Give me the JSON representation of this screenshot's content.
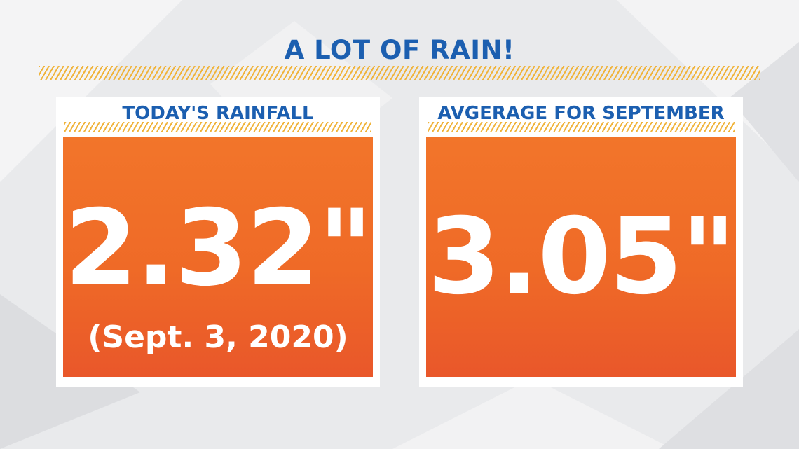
{
  "title": "A LOT OF RAIN!",
  "cards": [
    {
      "header": "TODAY'S RAINFALL",
      "value": "2.32\"",
      "subtitle": "(Sept. 3, 2020)"
    },
    {
      "header": "AVGERAGE FOR SEPTEMBER",
      "value": "3.05\""
    }
  ],
  "colors": {
    "title_blue": "#1c5fb0",
    "hatch_gold": "#f0b43c",
    "panel_orange": "#ef6a27",
    "background": "#e9eaec"
  }
}
